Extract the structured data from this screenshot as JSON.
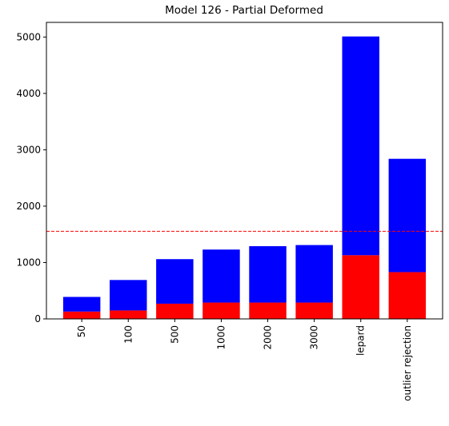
{
  "chart_data": {
    "type": "stacked_bar",
    "title": "Model 126 - Partial Deformed",
    "categories": [
      "50",
      "100",
      "500",
      "1000",
      "2000",
      "3000",
      "lepard",
      "outlier rejection"
    ],
    "series": [
      {
        "color": "#ff0000",
        "values": [
          130,
          150,
          270,
          290,
          290,
          290,
          1130,
          830
        ]
      },
      {
        "color": "#0000ff",
        "values": [
          260,
          540,
          790,
          940,
          1000,
          1020,
          3880,
          2010
        ]
      }
    ],
    "ylim": [
      0,
      5260
    ],
    "yticks": [
      0,
      1000,
      2000,
      3000,
      4000,
      5000
    ],
    "hline": {
      "value": 1555,
      "color": "#ff0000"
    }
  }
}
